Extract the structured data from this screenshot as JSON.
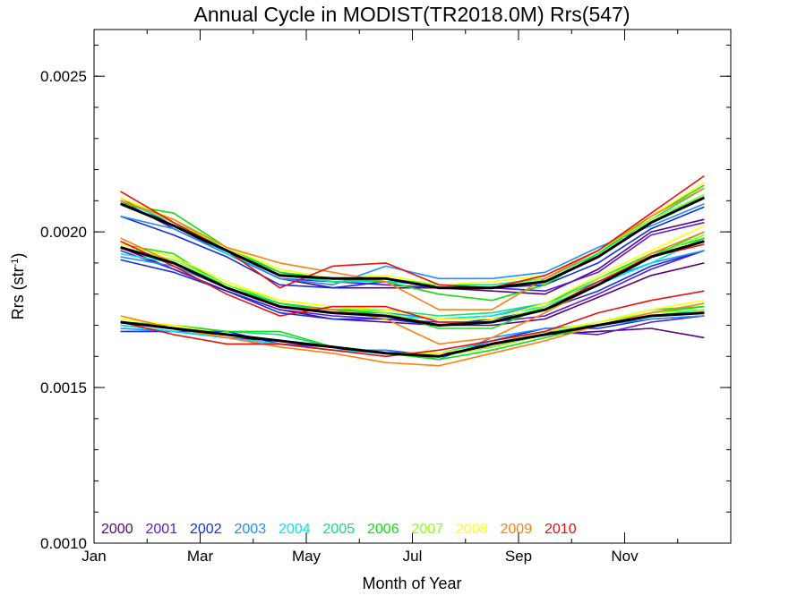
{
  "chart_data": {
    "type": "line",
    "title": "Annual Cycle in MODIST(TR2018.0M) Rrs(547)",
    "xlabel": "Month of Year",
    "ylabel_main": "Rrs (str",
    "ylabel_sup": "-1",
    "ylabel_end": ")",
    "ylim": [
      0.001,
      0.00265
    ],
    "xlim": [
      0,
      12
    ],
    "x_ticks": [
      {
        "x": 0,
        "label": "Jan"
      },
      {
        "x": 2,
        "label": "Mar"
      },
      {
        "x": 4,
        "label": "May"
      },
      {
        "x": 6,
        "label": "Jul"
      },
      {
        "x": 8,
        "label": "Sep"
      },
      {
        "x": 10,
        "label": "Nov"
      }
    ],
    "y_ticks": [
      {
        "y": 0.001,
        "label": "0.0010"
      },
      {
        "y": 0.0015,
        "label": "0.0015"
      },
      {
        "y": 0.002,
        "label": "0.0020"
      },
      {
        "y": 0.0025,
        "label": "0.0025"
      }
    ],
    "y_minor_step": 0.0001,
    "x_minor_step": 1,
    "grid": false,
    "legend_position": "bottom-left, inside plot",
    "x": [
      0.5,
      1.5,
      2.5,
      3.5,
      4.5,
      5.5,
      6.5,
      7.5,
      8.5,
      9.5,
      10.5,
      11.5
    ],
    "series": [
      {
        "name": "2000",
        "color": "#5a0080",
        "lines": [
          [
            0.00211,
            0.00202,
            0.00193,
            0.00185,
            0.00182,
            0.00182,
            0.00182,
            0.00181,
            0.0018,
            0.00188,
            0.002,
            0.00204
          ],
          [
            0.00195,
            0.00188,
            0.00181,
            0.00175,
            0.00172,
            0.00171,
            0.0017,
            0.0017,
            0.00172,
            0.00179,
            0.00186,
            0.0019
          ],
          [
            0.00171,
            0.00169,
            0.00166,
            0.00165,
            0.00163,
            0.00161,
            0.00161,
            0.00163,
            0.00167,
            0.00168,
            0.00169,
            0.00166
          ]
        ]
      },
      {
        "name": "2001",
        "color": "#5a1ad6",
        "lines": [
          [
            0.0021,
            0.00201,
            0.00193,
            0.00185,
            0.00184,
            0.00183,
            0.00182,
            0.00182,
            0.00181,
            0.00187,
            0.00199,
            0.00203
          ],
          [
            0.00194,
            0.00188,
            0.00181,
            0.00175,
            0.00173,
            0.00172,
            0.00171,
            0.00171,
            0.00173,
            0.0018,
            0.00188,
            0.00194
          ],
          [
            0.0017,
            0.00168,
            0.00166,
            0.00164,
            0.00163,
            0.00161,
            0.0016,
            0.00164,
            0.00168,
            0.00167,
            0.00171,
            0.00173
          ]
        ]
      },
      {
        "name": "2002",
        "color": "#1030e0",
        "lines": [
          [
            0.00205,
            0.00199,
            0.00192,
            0.00183,
            0.00182,
            0.00184,
            0.00183,
            0.00182,
            0.00183,
            0.0019,
            0.00201,
            0.00208
          ],
          [
            0.00191,
            0.00187,
            0.00181,
            0.00174,
            0.00172,
            0.00172,
            0.0017,
            0.00172,
            0.00175,
            0.00181,
            0.00189,
            0.00194
          ],
          [
            0.00168,
            0.00168,
            0.00168,
            0.00164,
            0.00162,
            0.00162,
            0.0016,
            0.00165,
            0.00169,
            0.00169,
            0.00172,
            0.00173
          ]
        ]
      },
      {
        "name": "2003",
        "color": "#1e8fff",
        "lines": [
          [
            0.00205,
            0.00201,
            0.00193,
            0.00185,
            0.00183,
            0.00189,
            0.00185,
            0.00185,
            0.00187,
            0.00195,
            0.00202,
            0.00209
          ],
          [
            0.00192,
            0.00189,
            0.00182,
            0.00176,
            0.00174,
            0.00174,
            0.00172,
            0.00173,
            0.00177,
            0.00184,
            0.0019,
            0.00194
          ],
          [
            0.00169,
            0.00168,
            0.00166,
            0.00164,
            0.00162,
            0.00162,
            0.00159,
            0.00166,
            0.00169,
            0.0017,
            0.00172,
            0.00173
          ]
        ]
      },
      {
        "name": "2004",
        "color": "#00e8e8",
        "lines": [
          [
            0.0021,
            0.00203,
            0.00193,
            0.00186,
            0.00184,
            0.00184,
            0.00183,
            0.00182,
            0.00184,
            0.00192,
            0.00203,
            0.00212
          ],
          [
            0.00193,
            0.0019,
            0.00183,
            0.00177,
            0.00174,
            0.00173,
            0.00172,
            0.00173,
            0.00176,
            0.00183,
            0.0019,
            0.00198
          ],
          [
            0.0017,
            0.00168,
            0.00166,
            0.00164,
            0.00162,
            0.00161,
            0.00161,
            0.00165,
            0.00168,
            0.0017,
            0.00173,
            0.00175
          ]
        ]
      },
      {
        "name": "2005",
        "color": "#10e080",
        "lines": [
          [
            0.0021,
            0.00204,
            0.00194,
            0.00187,
            0.00184,
            0.00185,
            0.00183,
            0.00183,
            0.00185,
            0.00193,
            0.00204,
            0.00214
          ],
          [
            0.00196,
            0.00192,
            0.00183,
            0.00177,
            0.00175,
            0.00175,
            0.00173,
            0.00174,
            0.00177,
            0.00185,
            0.00192,
            0.002
          ],
          [
            0.00171,
            0.0017,
            0.00168,
            0.00167,
            0.00163,
            0.00161,
            0.0016,
            0.00164,
            0.00168,
            0.00171,
            0.00175,
            0.00176
          ]
        ]
      },
      {
        "name": "2006",
        "color": "#10e010",
        "lines": [
          [
            0.00209,
            0.00206,
            0.00195,
            0.00187,
            0.00185,
            0.00184,
            0.0018,
            0.00178,
            0.00183,
            0.00193,
            0.00205,
            0.00215
          ],
          [
            0.00196,
            0.00193,
            0.00182,
            0.00177,
            0.00175,
            0.00174,
            0.00169,
            0.00169,
            0.00176,
            0.00185,
            0.00193,
            0.00198
          ],
          [
            0.00171,
            0.0017,
            0.00168,
            0.00168,
            0.00163,
            0.00161,
            0.00159,
            0.00162,
            0.00166,
            0.0017,
            0.00174,
            0.00176
          ]
        ]
      },
      {
        "name": "2007",
        "color": "#90ff10",
        "lines": [
          [
            0.00211,
            0.00203,
            0.00195,
            0.00188,
            0.00185,
            0.00185,
            0.00182,
            0.00182,
            0.00185,
            0.00194,
            0.00204,
            0.00212
          ],
          [
            0.00195,
            0.00191,
            0.00183,
            0.00178,
            0.00176,
            0.00174,
            0.0017,
            0.00171,
            0.00176,
            0.00185,
            0.00192,
            0.00199
          ],
          [
            0.00172,
            0.0017,
            0.00167,
            0.00165,
            0.00163,
            0.00161,
            0.0016,
            0.00163,
            0.00167,
            0.00171,
            0.00174,
            0.00175
          ]
        ]
      },
      {
        "name": "2008",
        "color": "#ffff10",
        "lines": [
          [
            0.00211,
            0.00204,
            0.00195,
            0.00188,
            0.00185,
            0.00186,
            0.00183,
            0.00184,
            0.00186,
            0.00194,
            0.00205,
            0.00216
          ],
          [
            0.00196,
            0.00192,
            0.00184,
            0.00178,
            0.00176,
            0.00175,
            0.00172,
            0.00172,
            0.00177,
            0.00186,
            0.00194,
            0.00202
          ],
          [
            0.00172,
            0.0017,
            0.00167,
            0.00165,
            0.00163,
            0.00161,
            0.00161,
            0.00164,
            0.00168,
            0.00171,
            0.00175,
            0.00178
          ]
        ]
      },
      {
        "name": "2009",
        "color": "#ff8010",
        "lines": [
          [
            0.0021,
            0.00204,
            0.00195,
            0.0019,
            0.00187,
            0.00184,
            0.00175,
            0.00175,
            0.00185,
            0.00194,
            0.00205,
            0.00214
          ],
          [
            0.00198,
            0.0019,
            0.00182,
            0.00176,
            0.00175,
            0.00172,
            0.00164,
            0.00166,
            0.00174,
            0.00183,
            0.00193,
            0.002
          ],
          [
            0.00173,
            0.00169,
            0.00166,
            0.00163,
            0.00161,
            0.00158,
            0.00157,
            0.00161,
            0.00165,
            0.0017,
            0.00174,
            0.00177
          ]
        ]
      },
      {
        "name": "2010",
        "color": "#e81010",
        "lines": [
          [
            0.00213,
            0.00203,
            0.00194,
            0.00182,
            0.00189,
            0.0019,
            0.00183,
            0.00182,
            0.00186,
            0.00194,
            0.00206,
            0.00218
          ],
          [
            0.00197,
            0.00189,
            0.0018,
            0.00173,
            0.00176,
            0.00176,
            0.00171,
            0.00171,
            0.00175,
            0.00184,
            0.00192,
            0.00196
          ],
          [
            0.00171,
            0.00167,
            0.00164,
            0.00164,
            0.00162,
            0.0016,
            0.00162,
            0.00165,
            0.00168,
            0.00174,
            0.00178,
            0.00181
          ]
        ]
      },
      {
        "name": "",
        "color": "#000000",
        "is_mean": true,
        "lines": [
          [
            0.00209,
            0.00202,
            0.00194,
            0.00186,
            0.00185,
            0.00185,
            0.00182,
            0.00182,
            0.00184,
            0.00192,
            0.00203,
            0.00211
          ],
          [
            0.00195,
            0.0019,
            0.00182,
            0.00176,
            0.00174,
            0.00173,
            0.0017,
            0.00171,
            0.00175,
            0.00183,
            0.00192,
            0.00197
          ],
          [
            0.00171,
            0.00169,
            0.00167,
            0.00165,
            0.00163,
            0.00161,
            0.0016,
            0.00164,
            0.00167,
            0.0017,
            0.00173,
            0.00174
          ]
        ]
      }
    ]
  }
}
